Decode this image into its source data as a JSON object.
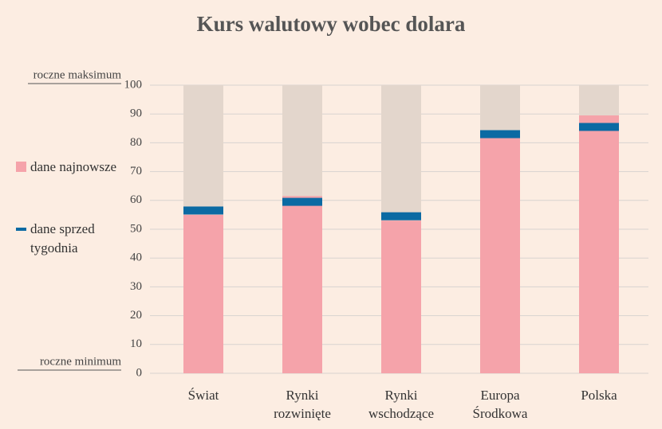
{
  "chart_data": {
    "type": "bar",
    "title": "Kurs walutowy wobec dolara",
    "categories": [
      "Świat",
      "Rynki rozwinięte",
      "Rynki wschodzące",
      "Europa Środkowa",
      "Polska"
    ],
    "series": [
      {
        "name": "dane najnowsze",
        "color": "#f5a3aa",
        "values": [
          55,
          61.5,
          53,
          84,
          89.5
        ]
      },
      {
        "name": "dane sprzed tygodnia",
        "color": "#0b6aa3",
        "values": [
          56.5,
          59.5,
          54.5,
          83,
          85.5
        ]
      }
    ],
    "ylim": [
      0,
      100
    ],
    "yticks": [
      0,
      10,
      20,
      30,
      40,
      50,
      60,
      70,
      80,
      90,
      100
    ],
    "grid": true,
    "annotations": [
      "roczne maksimum",
      "roczne minimum"
    ]
  }
}
